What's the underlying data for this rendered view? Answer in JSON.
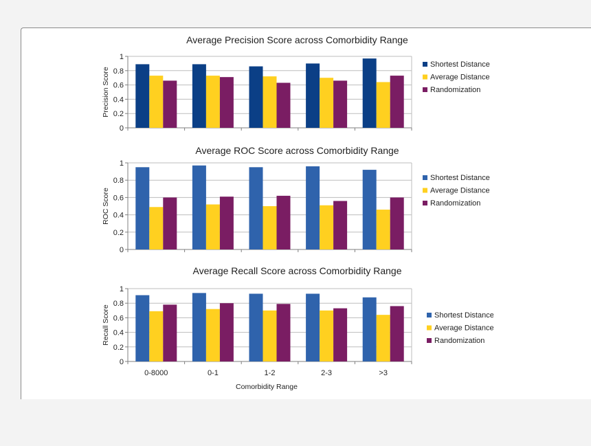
{
  "colors": {
    "shortest_dark": "#0b3f86",
    "shortest": "#2f63ac",
    "average": "#ffd020",
    "random": "#7a1d63",
    "grid": "#bdbdbd",
    "axis": "#7f7f7f",
    "text": "#1f1f1f"
  },
  "xaxis_title": "Comorbidity Range",
  "chart_data": [
    {
      "type": "bar",
      "title": "Average Precision Score across Comorbidity Range",
      "ylabel": "Precision Score",
      "xlabel": "",
      "ylim": [
        0,
        1
      ],
      "yticks": [
        "0",
        "0.2",
        "0.4",
        "0.6",
        "0.8",
        "1"
      ],
      "categories": [
        "0-8000",
        "0-1",
        "1-2",
        "2-3",
        ">3"
      ],
      "show_category_labels": false,
      "legend_position": "right",
      "grid": true,
      "series": [
        {
          "name": "Shortest Distance",
          "color": "#0b3f86",
          "values": [
            0.89,
            0.89,
            0.86,
            0.9,
            0.97
          ]
        },
        {
          "name": "Average Distance",
          "color": "#ffd020",
          "values": [
            0.73,
            0.73,
            0.72,
            0.7,
            0.64
          ]
        },
        {
          "name": "Randomization",
          "color": "#7a1d63",
          "values": [
            0.66,
            0.71,
            0.63,
            0.66,
            0.73
          ]
        }
      ]
    },
    {
      "type": "bar",
      "title": "Average ROC Score across Comorbidity Range",
      "ylabel": "ROC Score",
      "xlabel": "",
      "ylim": [
        0,
        1
      ],
      "yticks": [
        "0",
        "0.2",
        "0.4",
        "0.6",
        "0.8",
        "1"
      ],
      "categories": [
        "0-8000",
        "0-1",
        "1-2",
        "2-3",
        ">3"
      ],
      "show_category_labels": false,
      "legend_position": "right",
      "grid": true,
      "series": [
        {
          "name": "Shortest Distance",
          "color": "#2f63ac",
          "values": [
            0.95,
            0.97,
            0.95,
            0.96,
            0.92
          ]
        },
        {
          "name": "Average Distance",
          "color": "#ffd020",
          "values": [
            0.49,
            0.52,
            0.5,
            0.51,
            0.46
          ]
        },
        {
          "name": "Randomization",
          "color": "#7a1d63",
          "values": [
            0.6,
            0.61,
            0.62,
            0.56,
            0.6
          ]
        }
      ]
    },
    {
      "type": "bar",
      "title": "Average Recall Score across Comorbidity Range",
      "ylabel": "Recall Score",
      "xlabel": "Comorbidity Range",
      "ylim": [
        0,
        1
      ],
      "yticks": [
        "0",
        "0.2",
        "0.4",
        "0.6",
        "0.8",
        "1"
      ],
      "categories": [
        "0-8000",
        "0-1",
        "1-2",
        "2-3",
        ">3"
      ],
      "show_category_labels": true,
      "legend_position": "right",
      "grid": true,
      "series": [
        {
          "name": "Shortest Distance",
          "color": "#2f63ac",
          "values": [
            0.91,
            0.94,
            0.93,
            0.93,
            0.88
          ]
        },
        {
          "name": "Average Distance",
          "color": "#ffd020",
          "values": [
            0.69,
            0.72,
            0.7,
            0.7,
            0.64
          ]
        },
        {
          "name": "Randomization",
          "color": "#7a1d63",
          "values": [
            0.78,
            0.8,
            0.79,
            0.73,
            0.76
          ]
        }
      ]
    }
  ]
}
